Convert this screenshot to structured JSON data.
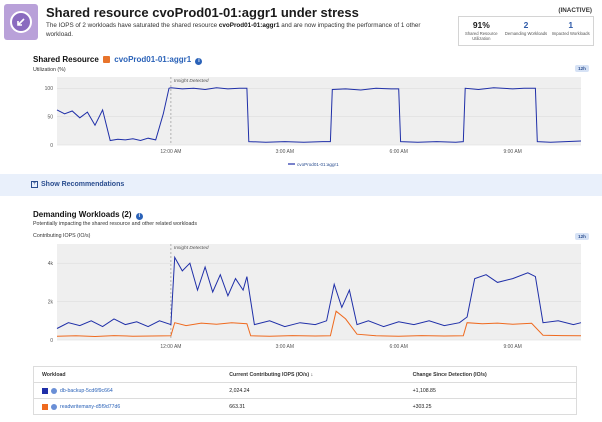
{
  "header": {
    "title": "Shared resource cvoProd01-01:aggr1 under stress",
    "desc_pre": "The IOPS of 2 workloads have saturated the shared resource ",
    "desc_bold": "cvoProd01-01:aggr1",
    "desc_post": " and are now impacting the performance of 1 other workload.",
    "state": "(INACTIVE)",
    "stats": [
      {
        "value": "91%",
        "label": "Shared Resource Utilization"
      },
      {
        "value": "2",
        "label": "Demanding Workloads"
      },
      {
        "value": "1",
        "label": "Impacted Workloads"
      }
    ]
  },
  "shared_resource": {
    "title_prefix": "Shared Resource",
    "resource_name": "cvoProd01-01:aggr1",
    "metric_label": "Utilization (%)",
    "range_pill": "12h",
    "marker_label": "Insight Detected",
    "y_ticks": [
      "100",
      "50",
      "0"
    ],
    "x_ticks": [
      "12:00 AM",
      "3:00 AM",
      "6:00 AM",
      "9:00 AM"
    ],
    "legend": "cvoProd01-01:aggr1"
  },
  "recommendations": {
    "label": "Show Recommendations"
  },
  "demanding": {
    "title": "Demanding Workloads (2)",
    "subtitle": "Potentially impacting the shared resource and other related workloads",
    "metric_label": "Contributing IOPS (IO/s)",
    "range_pill": "12h",
    "marker_label": "Insight Detected",
    "y_ticks": [
      "4k",
      "2k",
      "0"
    ],
    "x_ticks": [
      "12:00 AM",
      "3:00 AM",
      "6:00 AM",
      "9:00 AM"
    ]
  },
  "table": {
    "headers": [
      "Workload",
      "Current Contributing IOPS (IO/s) ↓",
      "Change Since Detection (IO/s)"
    ],
    "rows": [
      {
        "name": "db-backup-5cd6f9c664",
        "iops": "2,024.24",
        "change": "+1,108.85",
        "color": "#1f2fa8"
      },
      {
        "name": "readwritemany-d5f9d77d6",
        "iops": "663.31",
        "change": "+303.25",
        "color": "#ef6a1f"
      }
    ]
  },
  "colors": {
    "utilization_line": "#1f2fa8",
    "iops_blue": "#1f2fa8",
    "iops_orange": "#ef6a1f",
    "plot_bg": "#efefef",
    "accent": "#2a62b8"
  },
  "chart_data": [
    {
      "type": "line",
      "title": "",
      "xlabel": "",
      "ylabel": "Utilization (%)",
      "ylim": [
        0,
        120
      ],
      "x_ticks": [
        "12:00 AM",
        "3:00 AM",
        "6:00 AM",
        "9:00 AM"
      ],
      "series": [
        {
          "name": "cvoProd01-01:aggr1",
          "x_hours": [
            -3.0,
            -2.8,
            -2.6,
            -2.4,
            -2.2,
            -2.0,
            -1.8,
            -1.6,
            -1.4,
            -1.2,
            -1.0,
            -0.8,
            -0.6,
            -0.4,
            -0.2,
            -0.05,
            0.0,
            0.3,
            0.6,
            0.9,
            1.2,
            1.5,
            1.8,
            2.0,
            2.05,
            2.5,
            3.0,
            3.5,
            4.0,
            4.2,
            4.25,
            4.6,
            5.0,
            5.4,
            5.8,
            6.0,
            6.05,
            6.5,
            7.0,
            7.5,
            7.7,
            7.75,
            8.1,
            8.5,
            9.0,
            9.3,
            9.6,
            9.65,
            10.0,
            10.4,
            10.8
          ],
          "values": [
            62,
            55,
            60,
            48,
            58,
            35,
            62,
            8,
            10,
            9,
            11,
            8,
            12,
            9,
            55,
            100,
            101,
            99,
            100,
            98,
            101,
            99,
            100,
            100,
            6,
            5,
            6,
            5,
            6,
            6,
            98,
            99,
            97,
            100,
            99,
            99,
            6,
            5,
            6,
            5,
            6,
            100,
            98,
            101,
            99,
            100,
            100,
            6,
            5,
            6,
            7
          ]
        }
      ]
    },
    {
      "type": "line",
      "title": "",
      "xlabel": "",
      "ylabel": "Contributing IOPS (IO/s)",
      "ylim": [
        0,
        5000
      ],
      "x_ticks": [
        "12:00 AM",
        "3:00 AM",
        "6:00 AM",
        "9:00 AM"
      ],
      "series": [
        {
          "name": "db-backup-5cd6f9c664",
          "x_hours": [
            -3.0,
            -2.7,
            -2.4,
            -2.1,
            -1.8,
            -1.5,
            -1.2,
            -0.9,
            -0.6,
            -0.3,
            0.0,
            0.1,
            0.3,
            0.5,
            0.7,
            0.9,
            1.1,
            1.3,
            1.5,
            1.7,
            1.9,
            2.0,
            2.2,
            2.6,
            3.0,
            3.4,
            3.8,
            4.1,
            4.3,
            4.5,
            4.7,
            4.9,
            5.2,
            5.6,
            6.0,
            6.4,
            6.8,
            7.2,
            7.6,
            7.8,
            8.0,
            8.3,
            8.6,
            9.0,
            9.4,
            9.6,
            9.8,
            10.2,
            10.6,
            10.8
          ],
          "values": [
            600,
            900,
            750,
            1000,
            700,
            1100,
            800,
            950,
            700,
            1000,
            800,
            4300,
            3600,
            4000,
            2600,
            3800,
            2500,
            3400,
            2300,
            3200,
            2600,
            3300,
            800,
            1000,
            700,
            900,
            800,
            1000,
            2900,
            1700,
            2600,
            800,
            1000,
            700,
            950,
            800,
            1000,
            750,
            900,
            1200,
            3200,
            3400,
            3000,
            3200,
            3500,
            3300,
            900,
            1000,
            800,
            900
          ]
        },
        {
          "name": "readwritemany-d5f9d77d6",
          "x_hours": [
            -3.0,
            -2.5,
            -2.0,
            -1.5,
            -1.0,
            -0.5,
            0.0,
            0.1,
            0.4,
            0.8,
            1.2,
            1.6,
            2.0,
            2.1,
            2.6,
            3.2,
            3.8,
            4.2,
            4.35,
            4.6,
            4.9,
            5.4,
            6.0,
            6.6,
            7.2,
            7.7,
            7.8,
            8.2,
            8.6,
            9.0,
            9.5,
            9.8,
            10.3,
            10.8
          ],
          "values": [
            200,
            220,
            180,
            230,
            200,
            210,
            220,
            900,
            750,
            880,
            820,
            900,
            850,
            220,
            200,
            230,
            210,
            220,
            1500,
            1100,
            300,
            220,
            200,
            230,
            210,
            220,
            900,
            850,
            880,
            820,
            870,
            250,
            230,
            220
          ]
        }
      ]
    }
  ]
}
